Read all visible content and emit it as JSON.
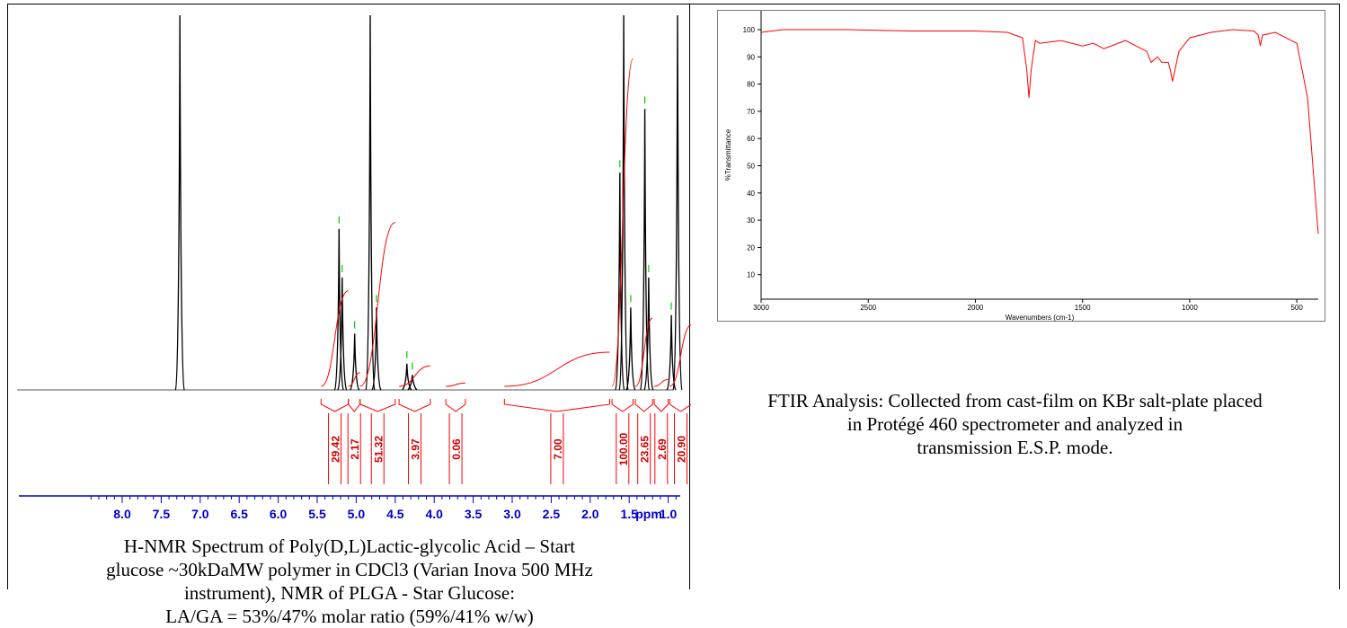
{
  "nmr": {
    "caption_lines": [
      "H-NMR Spectrum of Poly(D,L)Lactic-glycolic Acid – Start",
      "glucose ~30kDaMW polymer in CDCl3 (Varian Inova 500 MHz",
      "instrument), NMR of PLGA - Star Glucose:",
      "LA/GA = 53%/47% molar ratio (59%/41% w/w)"
    ],
    "axis_unit": "ppm",
    "colors": {
      "spectrum": "#000000",
      "integral": "#ff0000",
      "peak_marker": "#00cc00",
      "axis": "#0000cc",
      "integral_label": "#cc0000"
    }
  },
  "ftir": {
    "caption_lines": [
      "FTIR Analysis: Collected from cast-film on KBr salt-plate placed",
      "in Protégé 460 spectrometer and analyzed in",
      "transmission E.S.P. mode."
    ],
    "colors": {
      "spectrum": "#ff0000",
      "axis": "#000000"
    }
  },
  "chart_data": [
    {
      "type": "line",
      "title": "",
      "xlabel": "ppm",
      "ylabel": "",
      "x_reversed": true,
      "xlim": [
        8.4,
        0.0
      ],
      "x_ticks": [
        "8.0",
        "7.5",
        "7.0",
        "6.5",
        "6.0",
        "5.5",
        "5.0",
        "4.5",
        "4.0",
        "3.5",
        "3.0",
        "2.5",
        "2.0",
        "1.5",
        "1.0",
        "ppm"
      ],
      "x_tick_values": [
        8.0,
        7.5,
        7.0,
        6.5,
        6.0,
        5.5,
        5.0,
        4.5,
        4.0,
        3.5,
        3.0,
        2.5,
        2.0,
        1.5,
        1.0
      ],
      "peaks": [
        {
          "ppm": 7.26,
          "height": 1.0
        },
        {
          "ppm": 5.22,
          "height": 0.43
        },
        {
          "ppm": 5.18,
          "height": 0.3
        },
        {
          "ppm": 5.02,
          "height": 0.15
        },
        {
          "ppm": 4.82,
          "height": 1.0
        },
        {
          "ppm": 4.74,
          "height": 0.22
        },
        {
          "ppm": 4.35,
          "height": 0.07
        },
        {
          "ppm": 4.28,
          "height": 0.04
        },
        {
          "ppm": 1.62,
          "height": 0.58
        },
        {
          "ppm": 1.57,
          "height": 1.0
        },
        {
          "ppm": 1.48,
          "height": 0.22
        },
        {
          "ppm": 1.3,
          "height": 0.75
        },
        {
          "ppm": 1.25,
          "height": 0.3
        },
        {
          "ppm": 0.96,
          "height": 0.2
        },
        {
          "ppm": 0.88,
          "height": 1.0
        }
      ],
      "integrals": [
        {
          "label": "29.42",
          "from": 5.45,
          "to": 5.1
        },
        {
          "label": "2.17",
          "from": 5.1,
          "to": 4.95
        },
        {
          "label": "51.32",
          "from": 4.95,
          "to": 4.5
        },
        {
          "label": "3.97",
          "from": 4.45,
          "to": 4.05
        },
        {
          "label": "0.06",
          "from": 3.85,
          "to": 3.6
        },
        {
          "label": "7.00",
          "from": 3.1,
          "to": 1.75
        },
        {
          "label": "100.00",
          "from": 1.72,
          "to": 1.45
        },
        {
          "label": "23.65",
          "from": 1.42,
          "to": 1.2
        },
        {
          "label": "2.69",
          "from": 1.18,
          "to": 1.0
        },
        {
          "label": "20.90",
          "from": 0.98,
          "to": 0.7
        }
      ]
    },
    {
      "type": "line",
      "title": "",
      "xlabel": "Wavenumbers (cm-1)",
      "ylabel": "%Transmittance",
      "x_reversed": true,
      "xlim": [
        3000,
        400
      ],
      "ylim": [
        0,
        100
      ],
      "x_ticks": [
        "3000",
        "2500",
        "2000",
        "1500",
        "1000",
        "500"
      ],
      "x_tick_values": [
        3000,
        2500,
        2000,
        1500,
        1000,
        500
      ],
      "y_ticks": [
        "100",
        "90",
        "80",
        "70",
        "60",
        "50",
        "40",
        "30",
        "20",
        "10"
      ],
      "y_tick_values": [
        100,
        90,
        80,
        70,
        60,
        50,
        40,
        30,
        20,
        10
      ],
      "series": [
        {
          "x": [
            3000,
            2900,
            2600,
            2300,
            2000,
            1850,
            1780,
            1760,
            1750,
            1740,
            1720,
            1700,
            1600,
            1500,
            1450,
            1400,
            1300,
            1200,
            1180,
            1150,
            1130,
            1100,
            1090,
            1080,
            1050,
            1000,
            900,
            800,
            700,
            680,
            670,
            660,
            600,
            500,
            450,
            420,
            400
          ],
          "y": [
            99,
            100,
            100,
            99.5,
            99.5,
            99,
            97,
            85,
            75,
            85,
            96,
            95,
            96,
            94,
            95,
            93,
            96,
            92,
            88,
            90,
            88,
            88,
            85,
            81,
            92,
            97,
            99,
            100,
            99.5,
            98,
            94,
            98,
            99,
            95,
            75,
            45,
            25
          ]
        }
      ]
    }
  ]
}
